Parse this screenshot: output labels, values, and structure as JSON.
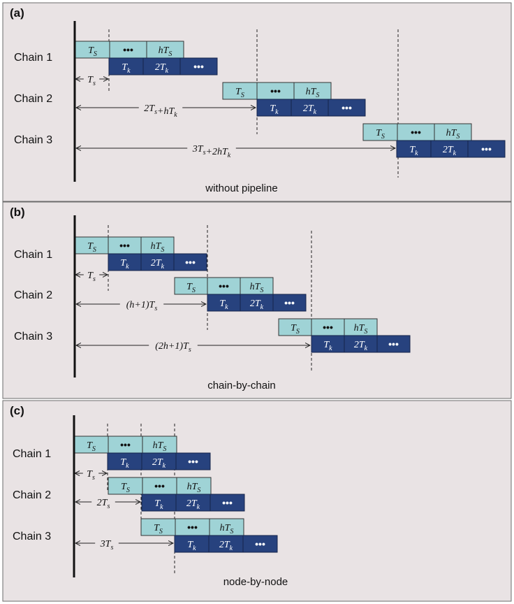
{
  "panels": [
    {
      "letter": "(a)",
      "caption": "without pipeline",
      "chains": [
        {
          "label": "Chain 1",
          "light": [
            "T_S",
            "•••",
            "hT_S"
          ],
          "dark": [
            "T_k",
            "2T_k",
            "•••"
          ]
        },
        {
          "label": "Chain 2",
          "light": [
            "T_S",
            "•••",
            "hT_S"
          ],
          "dark": [
            "T_k",
            "2T_k",
            "•••"
          ]
        },
        {
          "label": "Chain 3",
          "light": [
            "T_S",
            "•••",
            "hT_S"
          ],
          "dark": [
            "T_k",
            "2T_k",
            "•••"
          ]
        }
      ],
      "arrows": [
        "T_s",
        "2T_s+hT_k",
        "3T_s+2hT_k"
      ]
    },
    {
      "letter": "(b)",
      "caption": "chain-by-chain",
      "chains": [
        {
          "label": "Chain 1",
          "light": [
            "T_S",
            "•••",
            "hT_S"
          ],
          "dark": [
            "T_k",
            "2T_k",
            "•••"
          ]
        },
        {
          "label": "Chain 2",
          "light": [
            "T_S",
            "•••",
            "hT_S"
          ],
          "dark": [
            "T_k",
            "2T_k",
            "•••"
          ]
        },
        {
          "label": "Chain 3",
          "light": [
            "T_S",
            "•••",
            "hT_S"
          ],
          "dark": [
            "T_k",
            "2T_k",
            "•••"
          ]
        }
      ],
      "arrows": [
        "T_s",
        "(h+1)T_s",
        "(2h+1)T_s"
      ]
    },
    {
      "letter": "(c)",
      "caption": "node-by-node",
      "chains": [
        {
          "label": "Chain 1",
          "light": [
            "T_S",
            "•••",
            "hT_S"
          ],
          "dark": [
            "T_k",
            "2T_k",
            "•••"
          ]
        },
        {
          "label": "Chain 2",
          "light": [
            "T_S",
            "•••",
            "hT_S"
          ],
          "dark": [
            "T_k",
            "2T_k",
            "•••"
          ]
        },
        {
          "label": "Chain 3",
          "light": [
            "T_S",
            "•••",
            "hT_S"
          ],
          "dark": [
            "T_k",
            "2T_k",
            "•••"
          ]
        }
      ],
      "arrows": [
        "T_s",
        "2T_s",
        "3T_s"
      ]
    }
  ]
}
